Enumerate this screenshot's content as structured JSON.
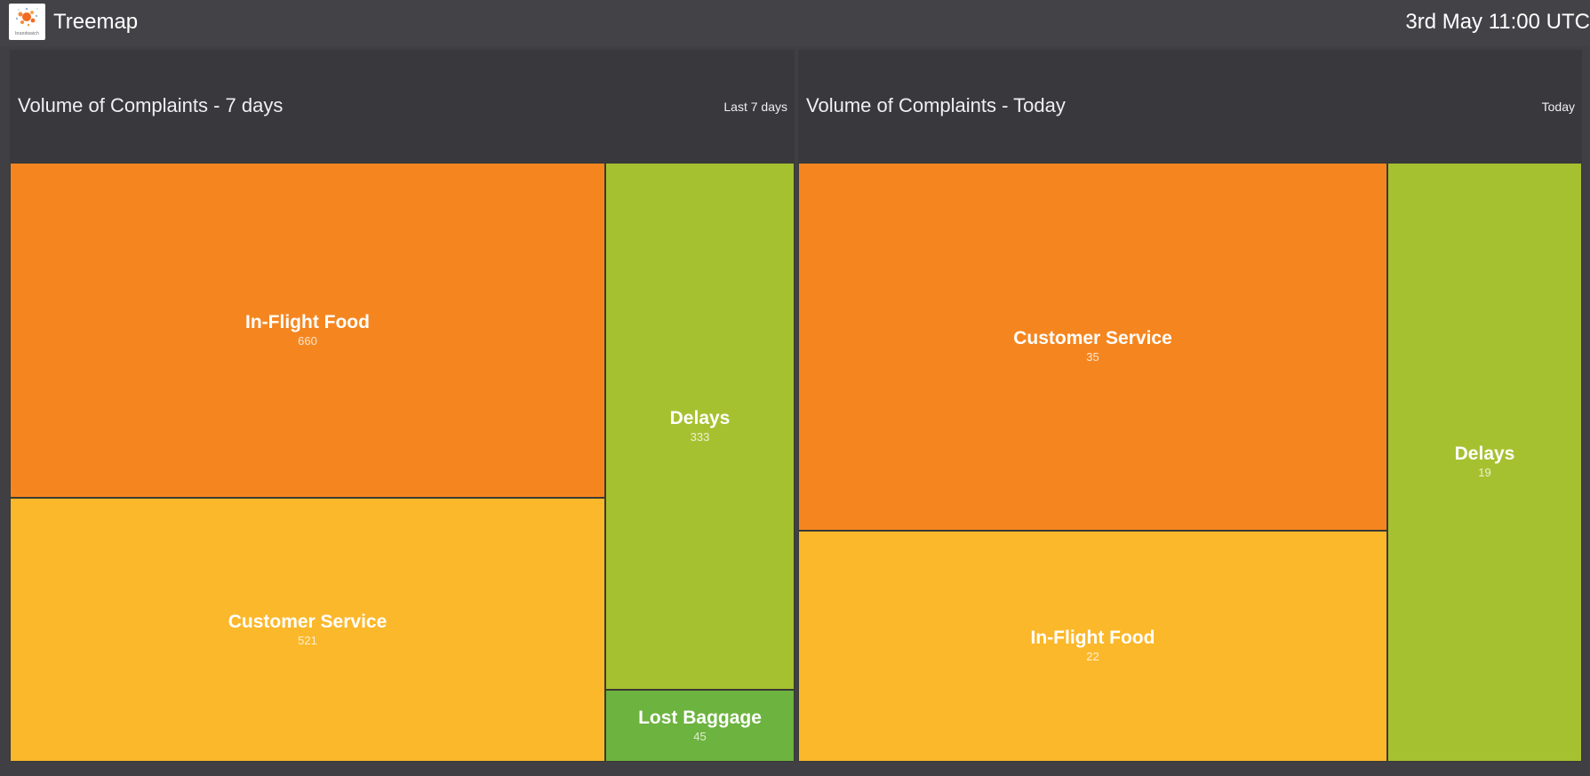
{
  "header": {
    "logo_text": "brandwatch",
    "title": "Treemap",
    "datetime": "3rd May 11:00 UTC"
  },
  "colors": {
    "orange": "#f5861f",
    "yellow": "#fbb82b",
    "lime": "#a6c130",
    "green": "#6db33f"
  },
  "panels": [
    {
      "title": "Volume of Complaints - 7 days",
      "range": "Last 7 days"
    },
    {
      "title": "Volume of Complaints - Today",
      "range": "Today"
    }
  ],
  "chart_data": [
    {
      "type": "treemap",
      "title": "Volume of Complaints - 7 days",
      "categories": [
        "In-Flight Food",
        "Customer Service",
        "Delays",
        "Lost Baggage"
      ],
      "values": [
        660,
        521,
        333,
        45
      ],
      "colors": [
        "#f5861f",
        "#fbb82b",
        "#a6c130",
        "#6db33f"
      ]
    },
    {
      "type": "treemap",
      "title": "Volume of Complaints - Today",
      "categories": [
        "Customer Service",
        "In-Flight Food",
        "Delays"
      ],
      "values": [
        35,
        22,
        19
      ],
      "colors": [
        "#f5861f",
        "#fbb82b",
        "#a6c130"
      ]
    }
  ]
}
